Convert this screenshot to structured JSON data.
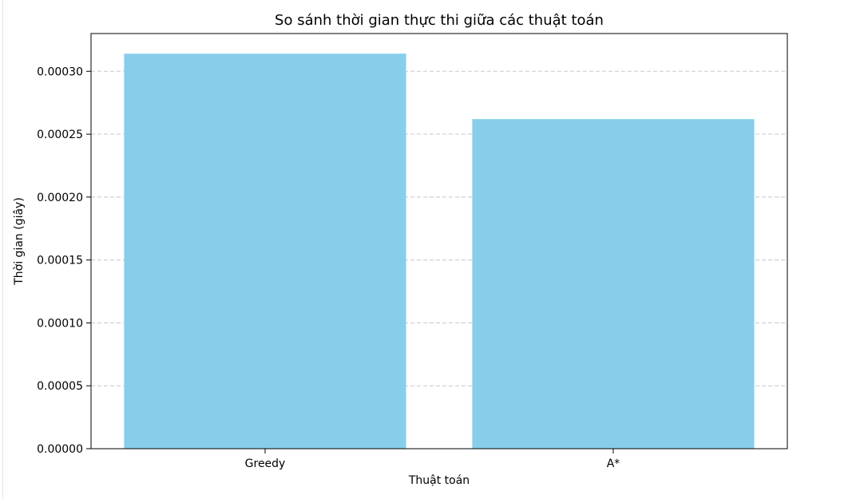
{
  "chart_data": {
    "type": "bar",
    "title": "So sánh thời gian thực thi giữa các thuật toán",
    "xlabel": "Thuật toán",
    "ylabel": "Thời gian (giây)",
    "categories": [
      "Greedy",
      "A*"
    ],
    "values": [
      0.000314,
      0.000262
    ],
    "ylim": [
      0,
      0.00033
    ],
    "yticks": [
      0,
      5e-05,
      0.0001,
      0.00015,
      0.0002,
      0.00025,
      0.0003
    ],
    "ytick_labels": [
      "0.00000",
      "0.00005",
      "0.00010",
      "0.00015",
      "0.00020",
      "0.00025",
      "0.00030"
    ],
    "grid": "y-dashed",
    "bar_color": "#87ceeb",
    "grid_color": "#c8c8c8",
    "axis_color": "#000000"
  }
}
